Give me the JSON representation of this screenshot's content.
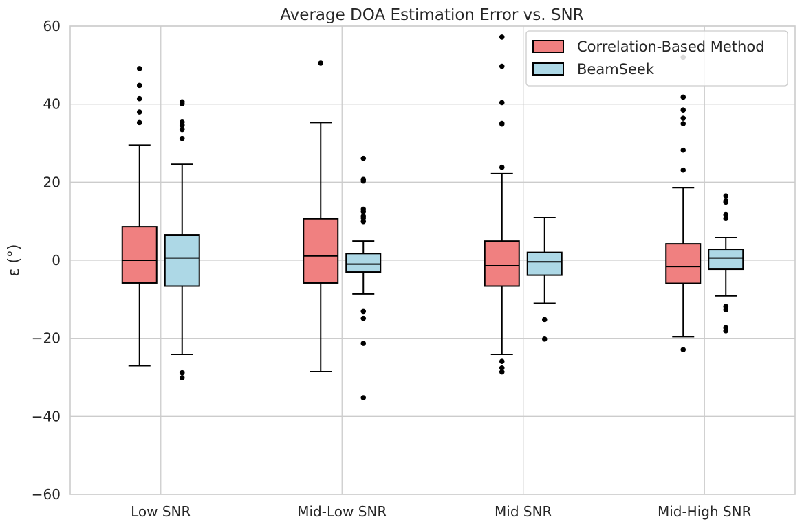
{
  "chart_data": {
    "type": "box",
    "title": "Average DOA Estimation Error vs. SNR",
    "xlabel": "",
    "ylabel": "ε (°)",
    "ylim": [
      -60,
      60
    ],
    "yticks": [
      -60,
      -40,
      -20,
      0,
      20,
      40,
      60
    ],
    "ytick_labels": [
      "−60",
      "−40",
      "−20",
      "0",
      "20",
      "40",
      "60"
    ],
    "grid": true,
    "legend_position": "top-right",
    "categories": [
      "Low SNR",
      "Mid-Low SNR",
      "Mid SNR",
      "Mid-High SNR"
    ],
    "series": [
      {
        "name": "Correlation-Based Method",
        "color": "#f08080",
        "boxes": [
          {
            "whisker_low": -27,
            "q1": -5.8,
            "median": 0,
            "q3": 8.6,
            "whisker_high": 29.5,
            "outliers": [
              49.1,
              44.8,
              41.4,
              38,
              35.3
            ]
          },
          {
            "whisker_low": -28.5,
            "q1": -5.8,
            "median": 1.1,
            "q3": 10.6,
            "whisker_high": 35.3,
            "outliers": [
              50.5
            ]
          },
          {
            "whisker_low": -24.1,
            "q1": -6.6,
            "median": -1.4,
            "q3": 4.9,
            "whisker_high": 22.2,
            "outliers": [
              57.2,
              49.7,
              40.4,
              35.1,
              34.9,
              23.8,
              -25.9,
              -27.6,
              -28.6
            ]
          },
          {
            "whisker_low": -19.6,
            "q1": -5.9,
            "median": -1.6,
            "q3": 4.2,
            "whisker_high": 18.6,
            "outliers": [
              52,
              41.8,
              38.5,
              36.4,
              35,
              28.2,
              23.1,
              -22.9
            ]
          }
        ]
      },
      {
        "name": "BeamSeek",
        "color": "#add8e6",
        "boxes": [
          {
            "whisker_low": -24.1,
            "q1": -6.6,
            "median": 0.6,
            "q3": 6.5,
            "whisker_high": 24.6,
            "outliers": [
              40.6,
              40.1,
              35.4,
              34.6,
              33.5,
              31.2,
              -28.8,
              -30.1
            ]
          },
          {
            "whisker_low": -8.6,
            "q1": -3,
            "median": -1,
            "q3": 1.7,
            "whisker_high": 4.9,
            "outliers": [
              26.1,
              20.7,
              20.3,
              13.1,
              12.5,
              11.3,
              10.8,
              9.9,
              -13.1,
              -14.9,
              -21.3,
              -35.2
            ]
          },
          {
            "whisker_low": -11,
            "q1": -3.8,
            "median": -0.4,
            "q3": 2,
            "whisker_high": 10.9,
            "outliers": [
              -15.2,
              -20.2
            ]
          },
          {
            "whisker_low": -9.1,
            "q1": -2.3,
            "median": 0.6,
            "q3": 2.8,
            "whisker_high": 5.8,
            "outliers": [
              16.5,
              15.2,
              14.9,
              11.7,
              10.7,
              -11.8,
              -12.7,
              -17.3,
              -18.1
            ]
          }
        ]
      }
    ]
  }
}
